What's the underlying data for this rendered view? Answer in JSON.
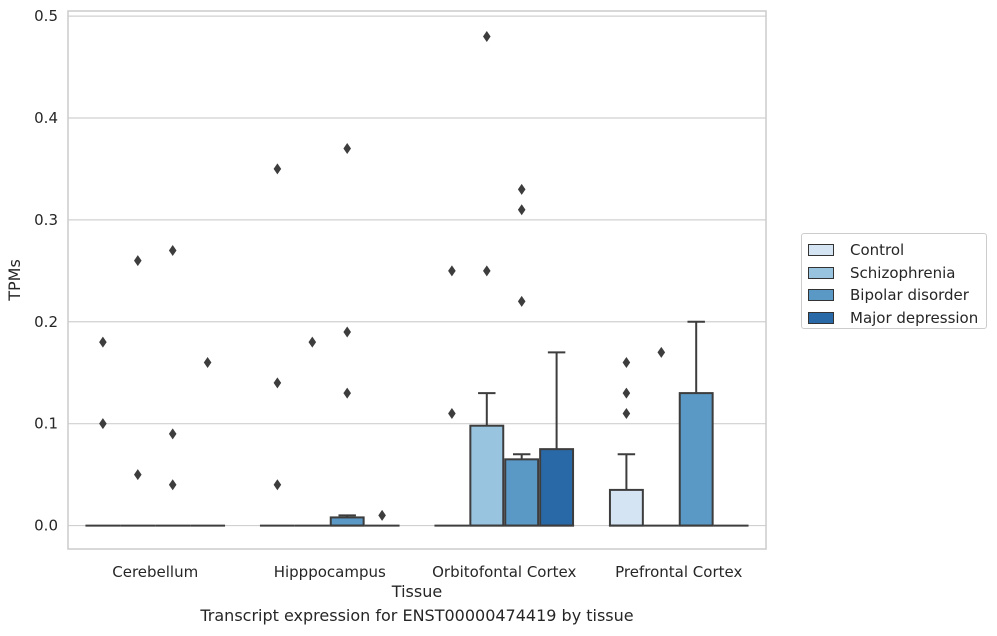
{
  "caption": "Transcript expression for ENST00000474419 by tissue",
  "chart_data": {
    "type": "box",
    "xlabel": "Tissue",
    "ylabel": "TPMs",
    "ylim": [
      -0.023,
      0.505
    ],
    "yticks": [
      0.0,
      0.1,
      0.2,
      0.3,
      0.4,
      0.5
    ],
    "ytick_labels": [
      "0.0",
      "0.1",
      "0.2",
      "0.3",
      "0.4",
      "0.5"
    ],
    "grid": true,
    "legend_position": "right",
    "categories": [
      "Cerebellum",
      "Hipppocampus",
      "Orbitofontal Cortex",
      "Prefrontal Cortex"
    ],
    "series": [
      {
        "name": "Control",
        "color": "#d5e4f3",
        "boxes": [
          {
            "q1": 0,
            "median": 0,
            "q3": 0,
            "whisker_low": 0,
            "whisker_high": 0,
            "outliers": [
              0.18,
              0.1
            ]
          },
          {
            "q1": 0,
            "median": 0,
            "q3": 0,
            "whisker_low": 0,
            "whisker_high": 0,
            "outliers": [
              0.35,
              0.14,
              0.04
            ]
          },
          {
            "q1": 0,
            "median": 0,
            "q3": 0,
            "whisker_low": 0,
            "whisker_high": 0,
            "outliers": [
              0.25,
              0.11
            ]
          },
          {
            "q1": 0,
            "median": 0,
            "q3": 0.035,
            "whisker_low": 0,
            "whisker_high": 0.07,
            "outliers": [
              0.16,
              0.13,
              0.11
            ]
          }
        ]
      },
      {
        "name": "Schizophrenia",
        "color": "#99c4df",
        "boxes": [
          {
            "q1": 0,
            "median": 0,
            "q3": 0,
            "whisker_low": 0,
            "whisker_high": 0,
            "outliers": [
              0.26,
              0.05
            ]
          },
          {
            "q1": 0,
            "median": 0,
            "q3": 0,
            "whisker_low": 0,
            "whisker_high": 0,
            "outliers": [
              0.18
            ]
          },
          {
            "q1": 0,
            "median": 0,
            "q3": 0.098,
            "whisker_low": 0,
            "whisker_high": 0.13,
            "outliers": [
              0.48,
              0.25
            ]
          },
          {
            "q1": 0,
            "median": 0,
            "q3": 0,
            "whisker_low": 0,
            "whisker_high": 0,
            "outliers": [
              0.17
            ]
          }
        ]
      },
      {
        "name": "Bipolar disorder",
        "color": "#5a98c5",
        "boxes": [
          {
            "q1": 0,
            "median": 0,
            "q3": 0,
            "whisker_low": 0,
            "whisker_high": 0,
            "outliers": [
              0.27,
              0.09,
              0.04
            ]
          },
          {
            "q1": 0,
            "median": 0,
            "q3": 0.008,
            "whisker_low": 0,
            "whisker_high": 0.01,
            "outliers": [
              0.37,
              0.19,
              0.13
            ]
          },
          {
            "q1": 0,
            "median": 0,
            "q3": 0.065,
            "whisker_low": 0,
            "whisker_high": 0.07,
            "outliers": [
              0.33,
              0.31,
              0.22
            ]
          },
          {
            "q1": 0,
            "median": 0,
            "q3": 0.13,
            "whisker_low": 0,
            "whisker_high": 0.2,
            "outliers": []
          }
        ]
      },
      {
        "name": "Major depression",
        "color": "#2a69a8",
        "boxes": [
          {
            "q1": 0,
            "median": 0,
            "q3": 0,
            "whisker_low": 0,
            "whisker_high": 0,
            "outliers": [
              0.16
            ]
          },
          {
            "q1": 0,
            "median": 0,
            "q3": 0,
            "whisker_low": 0,
            "whisker_high": 0,
            "outliers": [
              0.01
            ]
          },
          {
            "q1": 0,
            "median": 0,
            "q3": 0.075,
            "whisker_low": 0,
            "whisker_high": 0.17,
            "outliers": []
          },
          {
            "q1": 0,
            "median": 0,
            "q3": 0,
            "whisker_low": 0,
            "whisker_high": 0,
            "outliers": []
          }
        ]
      }
    ]
  }
}
